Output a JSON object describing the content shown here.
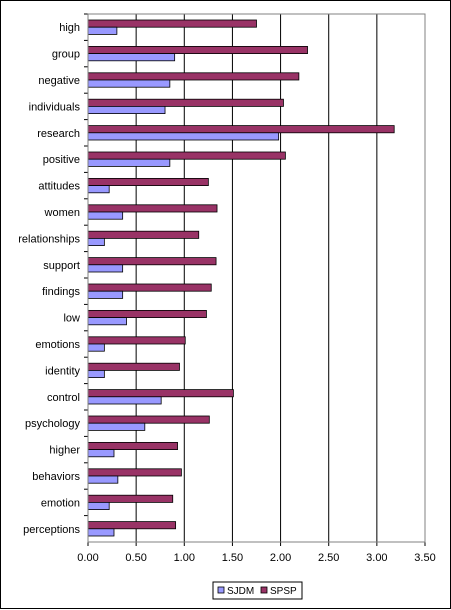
{
  "chart_data": {
    "type": "bar",
    "orientation": "horizontal",
    "categories": [
      "high",
      "group",
      "negative",
      "individuals",
      "research",
      "positive",
      "attitudes",
      "women",
      "relationships",
      "support",
      "findings",
      "low",
      "emotions",
      "identity",
      "control",
      "psychology",
      "higher",
      "behaviors",
      "emotion",
      "perceptions"
    ],
    "series": [
      {
        "name": "SJDM",
        "color": "#9999ff",
        "values": [
          0.3,
          0.9,
          0.85,
          0.8,
          1.98,
          0.85,
          0.22,
          0.36,
          0.17,
          0.36,
          0.36,
          0.4,
          0.17,
          0.17,
          0.76,
          0.59,
          0.27,
          0.31,
          0.22,
          0.27
        ]
      },
      {
        "name": "SPSP",
        "color": "#993366",
        "values": [
          1.75,
          2.28,
          2.19,
          2.03,
          3.18,
          2.05,
          1.25,
          1.34,
          1.15,
          1.33,
          1.28,
          1.23,
          1.01,
          0.95,
          1.51,
          1.26,
          0.93,
          0.97,
          0.88,
          0.91
        ]
      }
    ],
    "xlim": [
      0,
      3.5
    ],
    "xticks": [
      "0.00",
      "0.50",
      "1.00",
      "1.50",
      "2.00",
      "2.50",
      "3.00",
      "3.50"
    ],
    "grid": "vertical",
    "legend": "bottom"
  }
}
